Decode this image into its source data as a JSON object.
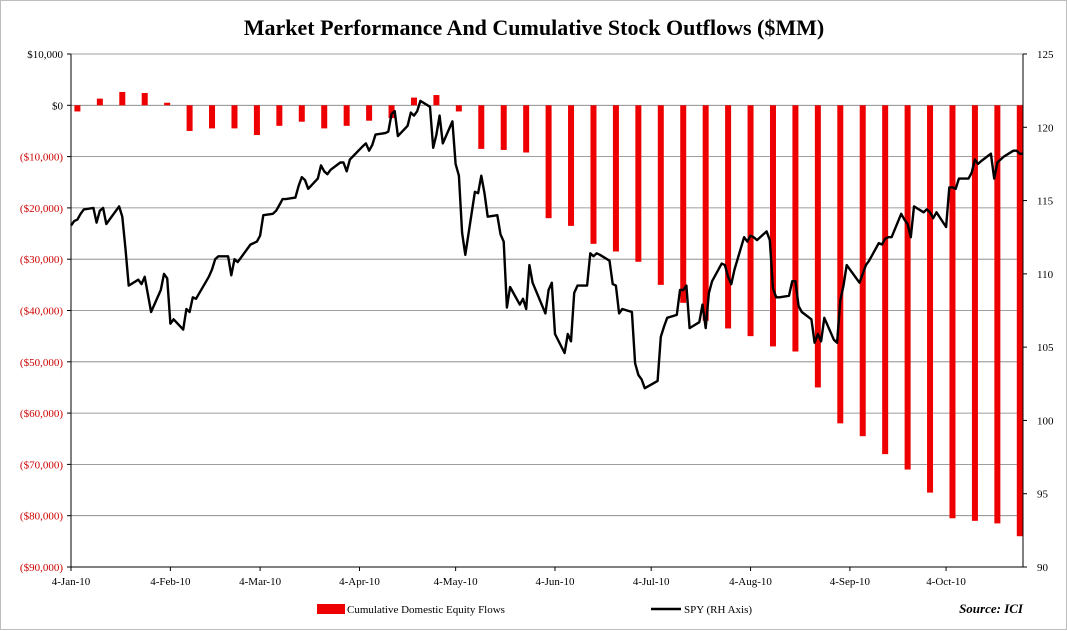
{
  "chart_data": {
    "type": "bar+line",
    "title": "Market Performance And Cumulative Stock Outflows ($MM)",
    "left_axis": {
      "range": [
        -90000,
        10000
      ],
      "tick_values": [
        10000,
        0,
        -10000,
        -20000,
        -30000,
        -40000,
        -50000,
        -60000,
        -70000,
        -80000,
        -90000
      ],
      "tick_labels": [
        "$10,000",
        "$0",
        "($10,000)",
        "($20,000)",
        "($30,000)",
        "($40,000)",
        "($50,000)",
        "($60,000)",
        "($70,000)",
        "($80,000)",
        "($90,000)"
      ],
      "positive_color": "#000000",
      "negative_color": "#cc0000"
    },
    "right_axis": {
      "range": [
        90,
        125
      ],
      "tick_values": [
        125,
        120,
        115,
        110,
        105,
        100,
        95,
        90
      ],
      "tick_labels": [
        "125",
        "120",
        "115",
        "110",
        "105",
        "100",
        "95",
        "90"
      ]
    },
    "x_axis": {
      "start": "2010-01-04",
      "end": "2010-10-28",
      "tick_dates": [
        "2010-01-04",
        "2010-02-04",
        "2010-03-04",
        "2010-04-04",
        "2010-05-04",
        "2010-06-04",
        "2010-07-04",
        "2010-08-04",
        "2010-09-04",
        "2010-10-04"
      ],
      "tick_labels": [
        "4-Jan-10",
        "4-Feb-10",
        "4-Mar-10",
        "4-Apr-10",
        "4-May-10",
        "4-Jun-10",
        "4-Jul-10",
        "4-Aug-10",
        "4-Sep-10",
        "4-Oct-10"
      ]
    },
    "series": [
      {
        "name": "Cumulative Domestic Equity Flows",
        "type": "bar",
        "axis": "left",
        "color": "#ee0000",
        "dates": [
          "2010-01-06",
          "2010-01-13",
          "2010-01-20",
          "2010-01-27",
          "2010-02-03",
          "2010-02-10",
          "2010-02-17",
          "2010-02-24",
          "2010-03-03",
          "2010-03-10",
          "2010-03-17",
          "2010-03-24",
          "2010-03-31",
          "2010-04-07",
          "2010-04-14",
          "2010-04-21",
          "2010-04-28",
          "2010-05-05",
          "2010-05-12",
          "2010-05-19",
          "2010-05-26",
          "2010-06-02",
          "2010-06-09",
          "2010-06-16",
          "2010-06-23",
          "2010-06-30",
          "2010-07-07",
          "2010-07-14",
          "2010-07-21",
          "2010-07-28",
          "2010-08-04",
          "2010-08-11",
          "2010-08-18",
          "2010-08-25",
          "2010-09-01",
          "2010-09-08",
          "2010-09-15",
          "2010-09-22",
          "2010-09-29",
          "2010-10-06",
          "2010-10-13",
          "2010-10-20",
          "2010-10-27"
        ],
        "values": [
          -1200,
          1300,
          2600,
          2400,
          500,
          -5000,
          -4500,
          -4500,
          -5800,
          -4000,
          -3200,
          -4500,
          -4000,
          -3000,
          -2500,
          1500,
          2000,
          -1200,
          -8500,
          -8700,
          -9200,
          -22000,
          -23500,
          -27000,
          -28500,
          -30500,
          -35000,
          -38500,
          -42000,
          -43500,
          -45000,
          -47000,
          -48000,
          -55000,
          -62000,
          -64500,
          -68000,
          -71000,
          -75500,
          -80500,
          -81000,
          -81500,
          -84000
        ]
      },
      {
        "name": "SPY (RH Axis)",
        "type": "line",
        "axis": "right",
        "color": "#000000",
        "points": [
          [
            "2010-01-04",
            113.3
          ],
          [
            "2010-01-05",
            113.6
          ],
          [
            "2010-01-06",
            113.7
          ],
          [
            "2010-01-07",
            114.1
          ],
          [
            "2010-01-08",
            114.4
          ],
          [
            "2010-01-11",
            114.5
          ],
          [
            "2010-01-12",
            113.5
          ],
          [
            "2010-01-13",
            114.3
          ],
          [
            "2010-01-14",
            114.5
          ],
          [
            "2010-01-15",
            113.4
          ],
          [
            "2010-01-19",
            114.6
          ],
          [
            "2010-01-20",
            113.9
          ],
          [
            "2010-01-21",
            111.7
          ],
          [
            "2010-01-22",
            109.2
          ],
          [
            "2010-01-25",
            109.6
          ],
          [
            "2010-01-26",
            109.3
          ],
          [
            "2010-01-27",
            109.8
          ],
          [
            "2010-01-28",
            108.6
          ],
          [
            "2010-01-29",
            107.4
          ],
          [
            "2010-02-01",
            108.9
          ],
          [
            "2010-02-02",
            110.0
          ],
          [
            "2010-02-03",
            109.7
          ],
          [
            "2010-02-04",
            106.6
          ],
          [
            "2010-02-05",
            106.9
          ],
          [
            "2010-02-08",
            106.2
          ],
          [
            "2010-02-09",
            107.6
          ],
          [
            "2010-02-10",
            107.4
          ],
          [
            "2010-02-11",
            108.4
          ],
          [
            "2010-02-12",
            108.3
          ],
          [
            "2010-02-16",
            109.8
          ],
          [
            "2010-02-17",
            110.3
          ],
          [
            "2010-02-18",
            111.0
          ],
          [
            "2010-02-19",
            111.2
          ],
          [
            "2010-02-22",
            111.2
          ],
          [
            "2010-02-23",
            109.9
          ],
          [
            "2010-02-24",
            111.0
          ],
          [
            "2010-02-25",
            110.8
          ],
          [
            "2010-02-26",
            111.1
          ],
          [
            "2010-03-01",
            112.0
          ],
          [
            "2010-03-02",
            112.1
          ],
          [
            "2010-03-03",
            112.2
          ],
          [
            "2010-03-04",
            112.6
          ],
          [
            "2010-03-05",
            114.0
          ],
          [
            "2010-03-08",
            114.1
          ],
          [
            "2010-03-09",
            114.3
          ],
          [
            "2010-03-10",
            114.7
          ],
          [
            "2010-03-11",
            115.1
          ],
          [
            "2010-03-12",
            115.1
          ],
          [
            "2010-03-15",
            115.2
          ],
          [
            "2010-03-16",
            116.0
          ],
          [
            "2010-03-17",
            116.6
          ],
          [
            "2010-03-18",
            116.4
          ],
          [
            "2010-03-19",
            115.8
          ],
          [
            "2010-03-22",
            116.5
          ],
          [
            "2010-03-23",
            117.4
          ],
          [
            "2010-03-24",
            117.0
          ],
          [
            "2010-03-25",
            116.8
          ],
          [
            "2010-03-26",
            117.1
          ],
          [
            "2010-03-29",
            117.6
          ],
          [
            "2010-03-30",
            117.6
          ],
          [
            "2010-03-31",
            117.0
          ],
          [
            "2010-04-01",
            117.8
          ],
          [
            "2010-04-05",
            118.7
          ],
          [
            "2010-04-06",
            118.9
          ],
          [
            "2010-04-07",
            118.4
          ],
          [
            "2010-04-08",
            118.8
          ],
          [
            "2010-04-09",
            119.5
          ],
          [
            "2010-04-12",
            119.6
          ],
          [
            "2010-04-13",
            119.7
          ],
          [
            "2010-04-14",
            120.9
          ],
          [
            "2010-04-15",
            121.1
          ],
          [
            "2010-04-16",
            119.4
          ],
          [
            "2010-04-19",
            120.1
          ],
          [
            "2010-04-20",
            121.0
          ],
          [
            "2010-04-21",
            120.8
          ],
          [
            "2010-04-22",
            121.1
          ],
          [
            "2010-04-23",
            121.8
          ],
          [
            "2010-04-26",
            121.4
          ],
          [
            "2010-04-27",
            118.6
          ],
          [
            "2010-04-28",
            119.5
          ],
          [
            "2010-04-29",
            120.8
          ],
          [
            "2010-04-30",
            118.9
          ],
          [
            "2010-05-03",
            120.4
          ],
          [
            "2010-05-04",
            117.5
          ],
          [
            "2010-05-05",
            116.7
          ],
          [
            "2010-05-06",
            112.8
          ],
          [
            "2010-05-07",
            111.3
          ],
          [
            "2010-05-10",
            115.6
          ],
          [
            "2010-05-11",
            115.5
          ],
          [
            "2010-05-12",
            116.7
          ],
          [
            "2010-05-13",
            115.5
          ],
          [
            "2010-05-14",
            113.9
          ],
          [
            "2010-05-17",
            114.0
          ],
          [
            "2010-05-18",
            112.7
          ],
          [
            "2010-05-19",
            112.2
          ],
          [
            "2010-05-20",
            107.7
          ],
          [
            "2010-05-21",
            109.1
          ],
          [
            "2010-05-24",
            107.9
          ],
          [
            "2010-05-25",
            108.3
          ],
          [
            "2010-05-26",
            107.6
          ],
          [
            "2010-05-27",
            110.6
          ],
          [
            "2010-05-28",
            109.4
          ],
          [
            "2010-06-01",
            107.3
          ],
          [
            "2010-06-02",
            108.9
          ],
          [
            "2010-06-03",
            109.4
          ],
          [
            "2010-06-04",
            105.9
          ],
          [
            "2010-06-07",
            104.6
          ],
          [
            "2010-06-08",
            105.9
          ],
          [
            "2010-06-09",
            105.4
          ],
          [
            "2010-06-10",
            108.7
          ],
          [
            "2010-06-11",
            109.2
          ],
          [
            "2010-06-14",
            109.2
          ],
          [
            "2010-06-15",
            111.4
          ],
          [
            "2010-06-16",
            111.2
          ],
          [
            "2010-06-17",
            111.4
          ],
          [
            "2010-06-18",
            111.3
          ],
          [
            "2010-06-21",
            110.9
          ],
          [
            "2010-06-22",
            109.3
          ],
          [
            "2010-06-23",
            109.2
          ],
          [
            "2010-06-24",
            107.3
          ],
          [
            "2010-06-25",
            107.6
          ],
          [
            "2010-06-28",
            107.4
          ],
          [
            "2010-06-29",
            103.9
          ],
          [
            "2010-06-30",
            103.1
          ],
          [
            "2010-07-01",
            102.8
          ],
          [
            "2010-07-02",
            102.2
          ],
          [
            "2010-07-06",
            102.7
          ],
          [
            "2010-07-07",
            105.7
          ],
          [
            "2010-07-08",
            106.4
          ],
          [
            "2010-07-09",
            107.0
          ],
          [
            "2010-07-12",
            107.2
          ],
          [
            "2010-07-13",
            108.9
          ],
          [
            "2010-07-14",
            108.9
          ],
          [
            "2010-07-15",
            109.2
          ],
          [
            "2010-07-16",
            106.3
          ],
          [
            "2010-07-19",
            106.7
          ],
          [
            "2010-07-20",
            107.9
          ],
          [
            "2010-07-21",
            106.3
          ],
          [
            "2010-07-22",
            108.7
          ],
          [
            "2010-07-23",
            109.5
          ],
          [
            "2010-07-26",
            110.7
          ],
          [
            "2010-07-27",
            110.6
          ],
          [
            "2010-07-28",
            109.8
          ],
          [
            "2010-07-29",
            109.3
          ],
          [
            "2010-07-30",
            110.3
          ],
          [
            "2010-08-02",
            112.5
          ],
          [
            "2010-08-03",
            112.2
          ],
          [
            "2010-08-04",
            112.6
          ],
          [
            "2010-08-05",
            112.5
          ],
          [
            "2010-08-06",
            112.3
          ],
          [
            "2010-08-09",
            112.9
          ],
          [
            "2010-08-10",
            112.3
          ],
          [
            "2010-08-11",
            109.0
          ],
          [
            "2010-08-12",
            108.4
          ],
          [
            "2010-08-13",
            108.4
          ],
          [
            "2010-08-16",
            108.5
          ],
          [
            "2010-08-17",
            109.5
          ],
          [
            "2010-08-18",
            109.5
          ],
          [
            "2010-08-19",
            107.8
          ],
          [
            "2010-08-20",
            107.4
          ],
          [
            "2010-08-23",
            106.9
          ],
          [
            "2010-08-24",
            105.3
          ],
          [
            "2010-08-25",
            105.9
          ],
          [
            "2010-08-26",
            105.4
          ],
          [
            "2010-08-27",
            107.0
          ],
          [
            "2010-08-30",
            105.5
          ],
          [
            "2010-08-31",
            105.3
          ],
          [
            "2010-09-01",
            108.2
          ],
          [
            "2010-09-02",
            109.2
          ],
          [
            "2010-09-03",
            110.6
          ],
          [
            "2010-09-07",
            109.4
          ],
          [
            "2010-09-08",
            110.0
          ],
          [
            "2010-09-09",
            110.6
          ],
          [
            "2010-09-10",
            110.9
          ],
          [
            "2010-09-13",
            112.1
          ],
          [
            "2010-09-14",
            112.0
          ],
          [
            "2010-09-15",
            112.4
          ],
          [
            "2010-09-16",
            112.5
          ],
          [
            "2010-09-17",
            112.5
          ],
          [
            "2010-09-20",
            114.1
          ],
          [
            "2010-09-21",
            113.7
          ],
          [
            "2010-09-22",
            113.4
          ],
          [
            "2010-09-23",
            112.5
          ],
          [
            "2010-09-24",
            114.6
          ],
          [
            "2010-09-27",
            114.2
          ],
          [
            "2010-09-28",
            114.4
          ],
          [
            "2010-09-29",
            114.2
          ],
          [
            "2010-09-30",
            113.8
          ],
          [
            "2010-10-01",
            114.2
          ],
          [
            "2010-10-04",
            113.2
          ],
          [
            "2010-10-05",
            115.9
          ],
          [
            "2010-10-06",
            115.9
          ],
          [
            "2010-10-07",
            115.8
          ],
          [
            "2010-10-08",
            116.5
          ],
          [
            "2010-10-11",
            116.5
          ],
          [
            "2010-10-12",
            116.9
          ],
          [
            "2010-10-13",
            117.8
          ],
          [
            "2010-10-14",
            117.5
          ],
          [
            "2010-10-15",
            117.7
          ],
          [
            "2010-10-18",
            118.2
          ],
          [
            "2010-10-19",
            116.5
          ],
          [
            "2010-10-20",
            117.6
          ],
          [
            "2010-10-21",
            117.8
          ],
          [
            "2010-10-22",
            118.0
          ],
          [
            "2010-10-25",
            118.4
          ],
          [
            "2010-10-26",
            118.4
          ],
          [
            "2010-10-27",
            118.2
          ],
          [
            "2010-10-28",
            118.2
          ]
        ]
      }
    ],
    "legend_position": "bottom"
  },
  "source": "Source: ICI"
}
